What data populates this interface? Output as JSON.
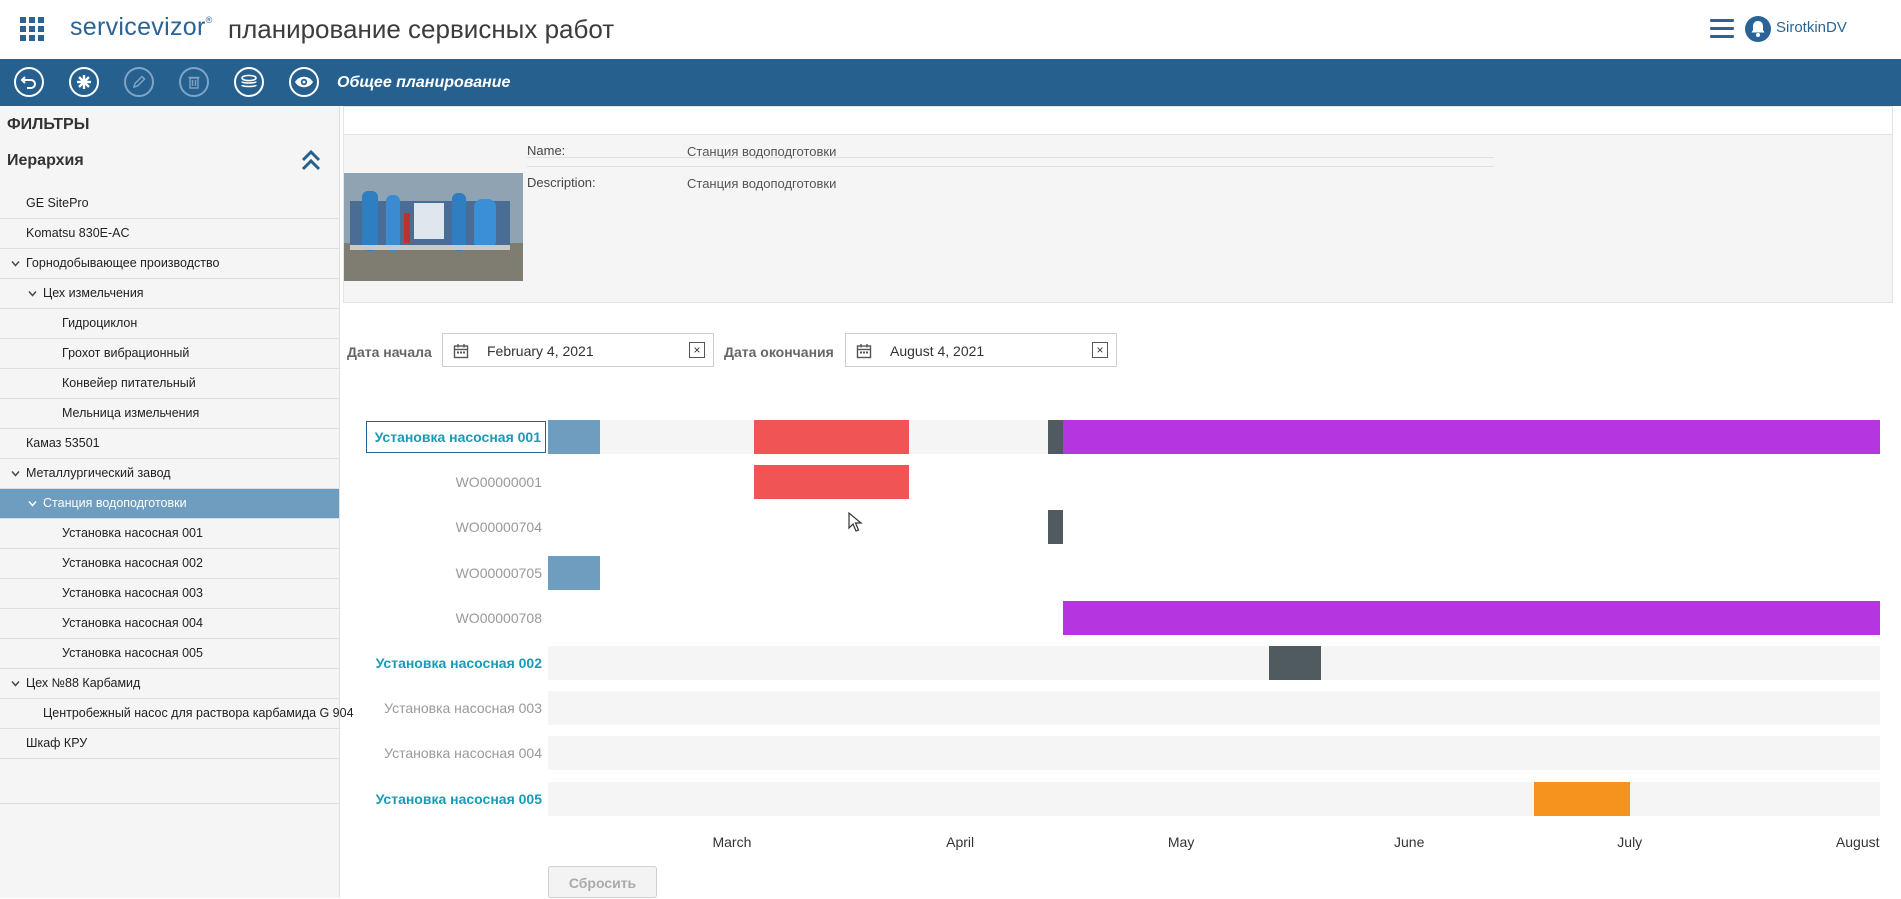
{
  "header": {
    "logo": "servicevizor",
    "logo_mark": "®",
    "title": "планирование сервисных работ",
    "username": "SirotkinDV"
  },
  "toolbar": {
    "title": "Общее планирование",
    "buttons": [
      "back-icon",
      "asterisk-icon",
      "edit-icon",
      "delete-icon",
      "layers-icon",
      "eye-icon"
    ]
  },
  "sidebar": {
    "filters_heading": "ФИЛЬТРЫ",
    "hierarchy_heading": "Иерархия",
    "items": [
      {
        "label": "GE SitePro",
        "level": 0,
        "expandable": false
      },
      {
        "label": "Komatsu 830E-AC",
        "level": 0,
        "expandable": false
      },
      {
        "label": "Горнодобывающее производство",
        "level": 0,
        "expandable": true
      },
      {
        "label": "Цех измельчения",
        "level": 1,
        "expandable": true
      },
      {
        "label": "Гидроциклон",
        "level": 2,
        "expandable": false
      },
      {
        "label": "Грохот вибрационный",
        "level": 2,
        "expandable": false
      },
      {
        "label": "Конвейер питательный",
        "level": 2,
        "expandable": false
      },
      {
        "label": "Мельница измельчения",
        "level": 2,
        "expandable": false
      },
      {
        "label": "Камаз 53501",
        "level": 0,
        "expandable": false
      },
      {
        "label": "Металлургический завод",
        "level": 0,
        "expandable": true
      },
      {
        "label": "Станция водоподготовки",
        "level": 1,
        "expandable": true,
        "selected": true
      },
      {
        "label": "Установка насосная 001",
        "level": 2,
        "expandable": false
      },
      {
        "label": "Установка насосная 002",
        "level": 2,
        "expandable": false
      },
      {
        "label": "Установка насосная 003",
        "level": 2,
        "expandable": false
      },
      {
        "label": "Установка насосная 004",
        "level": 2,
        "expandable": false
      },
      {
        "label": "Установка насосная 005",
        "level": 2,
        "expandable": false
      },
      {
        "label": "Цех №88 Карбамид",
        "level": 0,
        "expandable": true
      },
      {
        "label": "Центробежный насос для раствора карбамида G 904",
        "level": 1,
        "expandable": false
      },
      {
        "label": "Шкаф КРУ",
        "level": 0,
        "expandable": false
      }
    ]
  },
  "details": {
    "name_label": "Name:",
    "name_value": "Станция водоподготовки",
    "description_label": "Description:",
    "description_value": "Станция водоподготовки"
  },
  "dates": {
    "start_label": "Дата начала",
    "start_value": "February 4, 2021",
    "end_label": "Дата окончания",
    "end_value": "August 4, 2021",
    "clear_glyph": "×"
  },
  "gantt": {
    "start": "2021-02-04",
    "end": "2021-08-04",
    "colors": {
      "blue": "#6f9dc0",
      "red": "#f05454",
      "dark": "#4f5b5f",
      "purple": "#b535e0",
      "orange": "#f4941e",
      "track": "#f5f5f5"
    },
    "rows": [
      {
        "label": "Установка насосная 001",
        "style": "bold-boxed",
        "bars": [
          {
            "from": "2021-02-04",
            "to": "2021-02-11",
            "color": "blue"
          },
          {
            "from": "2021-03-04",
            "to": "2021-03-25",
            "color": "red"
          },
          {
            "from": "2021-04-13",
            "to": "2021-04-15",
            "color": "dark"
          },
          {
            "from": "2021-04-15",
            "to": "2021-08-04",
            "color": "purple"
          }
        ]
      },
      {
        "label": "WO00000001",
        "style": "wo",
        "bars": [
          {
            "from": "2021-03-04",
            "to": "2021-03-25",
            "color": "red"
          }
        ]
      },
      {
        "label": "WO00000704",
        "style": "wo",
        "bars": [
          {
            "from": "2021-04-13",
            "to": "2021-04-15",
            "color": "dark"
          }
        ]
      },
      {
        "label": "WO00000705",
        "style": "wo",
        "bars": [
          {
            "from": "2021-02-04",
            "to": "2021-02-11",
            "color": "blue"
          }
        ]
      },
      {
        "label": "WO00000708",
        "style": "wo",
        "bars": [
          {
            "from": "2021-04-15",
            "to": "2021-08-04",
            "color": "purple"
          }
        ]
      },
      {
        "label": "Установка насосная 002",
        "style": "bold",
        "bars": [
          {
            "from": "2021-05-13",
            "to": "2021-05-20",
            "color": "dark"
          }
        ]
      },
      {
        "label": "Установка насосная 003",
        "style": "muted",
        "bars": []
      },
      {
        "label": "Установка насосная 004",
        "style": "muted",
        "bars": []
      },
      {
        "label": "Установка насосная 005",
        "style": "bold",
        "bars": [
          {
            "from": "2021-06-18",
            "to": "2021-07-01",
            "color": "orange"
          }
        ]
      }
    ],
    "months": [
      "March",
      "April",
      "May",
      "June",
      "July",
      "August"
    ],
    "reset_label": "Сбросить"
  }
}
